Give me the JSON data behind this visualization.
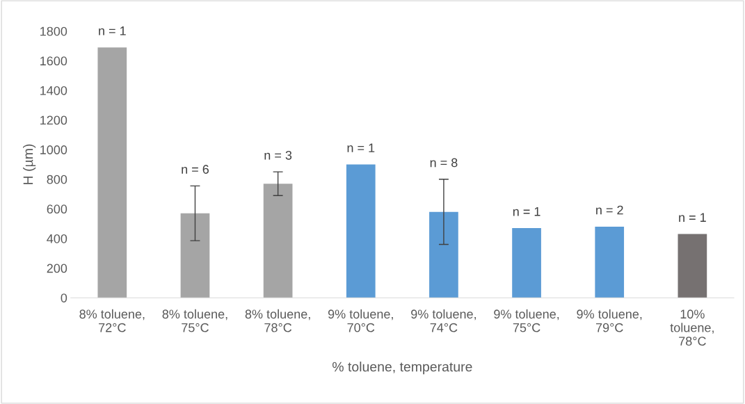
{
  "chart_data": {
    "type": "bar",
    "xlabel": "% toluene, temperature",
    "ylabel": "H (µm)",
    "categories": [
      "8% toluene,\n72°C",
      "8% toluene,\n75°C",
      "8% toluene,\n78°C",
      "9% toluene,\n70°C",
      "9% toluene,\n74°C",
      "9% toluene,\n75°C",
      "9% toluene,\n79°C",
      "10%\ntoluene,\n78°C"
    ],
    "values": [
      1690,
      570,
      770,
      900,
      580,
      470,
      480,
      430
    ],
    "colors": [
      "#a5a5a5",
      "#a5a5a5",
      "#a5a5a5",
      "#5b9bd5",
      "#5b9bd5",
      "#5b9bd5",
      "#5b9bd5",
      "#767171"
    ],
    "errors": [
      null,
      185,
      80,
      null,
      220,
      null,
      null,
      null
    ],
    "ylim": [
      0,
      1800
    ],
    "yticks": [
      0,
      200,
      400,
      600,
      800,
      1000,
      1200,
      1400,
      1600,
      1800
    ],
    "grid": false,
    "annotations": [
      "n = 1",
      "n = 6",
      "n = 3",
      "n = 1",
      "n = 8",
      "n = 1",
      "n = 2",
      "n = 1"
    ]
  }
}
